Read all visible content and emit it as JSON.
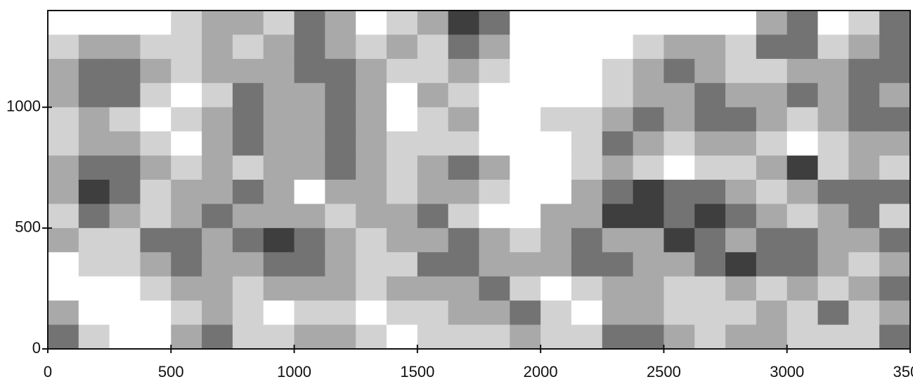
{
  "chart_data": {
    "type": "contour",
    "x": [
      62.5,
      187.5,
      312.5,
      437.5,
      562.5,
      687.5,
      812.5,
      937.5,
      1062.5,
      1187.5,
      1312.5,
      1437.5,
      1562.5,
      1687.5,
      1812.5,
      1937.5,
      2062.5,
      2187.5,
      2312.5,
      2437.5,
      2562.5,
      2687.5,
      2812.5,
      2937.5,
      3062.5,
      3187.5,
      3312.5,
      3437.5
    ],
    "y": [
      1350,
      1250,
      1150,
      1050,
      950,
      850,
      750,
      650,
      550,
      450,
      350,
      250,
      150,
      50
    ],
    "z": [
      [
        0,
        0,
        0,
        0,
        1,
        2,
        2,
        1,
        3,
        2,
        0,
        1,
        2,
        4,
        3,
        0,
        0,
        0,
        0,
        0,
        0,
        0,
        0,
        2,
        3,
        0,
        1,
        3
      ],
      [
        1,
        2,
        2,
        1,
        1,
        2,
        1,
        2,
        3,
        2,
        1,
        2,
        1,
        3,
        2,
        0,
        0,
        0,
        0,
        1,
        2,
        2,
        1,
        3,
        3,
        1,
        2,
        3
      ],
      [
        2,
        3,
        3,
        2,
        1,
        2,
        2,
        2,
        3,
        3,
        2,
        1,
        1,
        2,
        1,
        0,
        0,
        0,
        1,
        2,
        3,
        2,
        1,
        1,
        2,
        2,
        3,
        3
      ],
      [
        2,
        3,
        3,
        1,
        0,
        1,
        3,
        2,
        2,
        3,
        2,
        0,
        2,
        1,
        0,
        0,
        0,
        0,
        1,
        2,
        2,
        3,
        2,
        2,
        3,
        2,
        3,
        2
      ],
      [
        1,
        2,
        1,
        0,
        1,
        2,
        3,
        2,
        2,
        3,
        2,
        0,
        1,
        2,
        0,
        0,
        1,
        1,
        2,
        3,
        2,
        3,
        3,
        2,
        1,
        2,
        3,
        3
      ],
      [
        1,
        2,
        2,
        1,
        0,
        2,
        3,
        2,
        2,
        3,
        2,
        1,
        1,
        1,
        0,
        0,
        0,
        1,
        3,
        2,
        1,
        2,
        2,
        1,
        0,
        1,
        2,
        2
      ],
      [
        2,
        3,
        3,
        2,
        1,
        2,
        1,
        2,
        2,
        3,
        2,
        1,
        2,
        3,
        2,
        0,
        0,
        1,
        2,
        1,
        0,
        1,
        1,
        2,
        4,
        1,
        2,
        1
      ],
      [
        2,
        4,
        3,
        1,
        2,
        2,
        3,
        2,
        0,
        2,
        2,
        1,
        2,
        2,
        1,
        0,
        0,
        2,
        3,
        4,
        3,
        3,
        2,
        1,
        2,
        3,
        3,
        3
      ],
      [
        1,
        3,
        2,
        1,
        2,
        3,
        2,
        2,
        2,
        1,
        2,
        2,
        3,
        1,
        0,
        0,
        2,
        2,
        4,
        4,
        3,
        4,
        3,
        2,
        1,
        2,
        3,
        1
      ],
      [
        2,
        1,
        1,
        3,
        3,
        2,
        3,
        4,
        3,
        2,
        1,
        2,
        2,
        3,
        2,
        1,
        2,
        3,
        2,
        2,
        4,
        3,
        2,
        3,
        3,
        2,
        2,
        3
      ],
      [
        0,
        1,
        1,
        2,
        3,
        2,
        2,
        3,
        3,
        2,
        1,
        1,
        3,
        3,
        2,
        2,
        2,
        3,
        3,
        2,
        2,
        3,
        4,
        3,
        3,
        2,
        1,
        2
      ],
      [
        0,
        0,
        0,
        1,
        2,
        2,
        1,
        2,
        2,
        2,
        1,
        2,
        2,
        2,
        3,
        1,
        0,
        1,
        2,
        2,
        1,
        1,
        2,
        1,
        2,
        1,
        2,
        3
      ],
      [
        2,
        0,
        0,
        0,
        1,
        2,
        1,
        0,
        1,
        1,
        0,
        1,
        1,
        2,
        2,
        3,
        1,
        0,
        2,
        2,
        1,
        1,
        1,
        2,
        1,
        3,
        1,
        2
      ],
      [
        3,
        1,
        0,
        0,
        2,
        3,
        1,
        1,
        2,
        2,
        1,
        0,
        1,
        1,
        1,
        2,
        1,
        1,
        3,
        3,
        2,
        1,
        2,
        2,
        1,
        1,
        1,
        3
      ]
    ],
    "colors": [
      "#ffffff",
      "#d2d2d2",
      "#a9a9a9",
      "#737373",
      "#3e3e3e"
    ],
    "xlim": [
      0,
      3500
    ],
    "xticks": [
      0,
      500,
      1000,
      1500,
      2000,
      2500,
      3000,
      3500
    ],
    "ylim": [
      0,
      1400
    ],
    "yticks": [
      0,
      500,
      1000
    ]
  }
}
